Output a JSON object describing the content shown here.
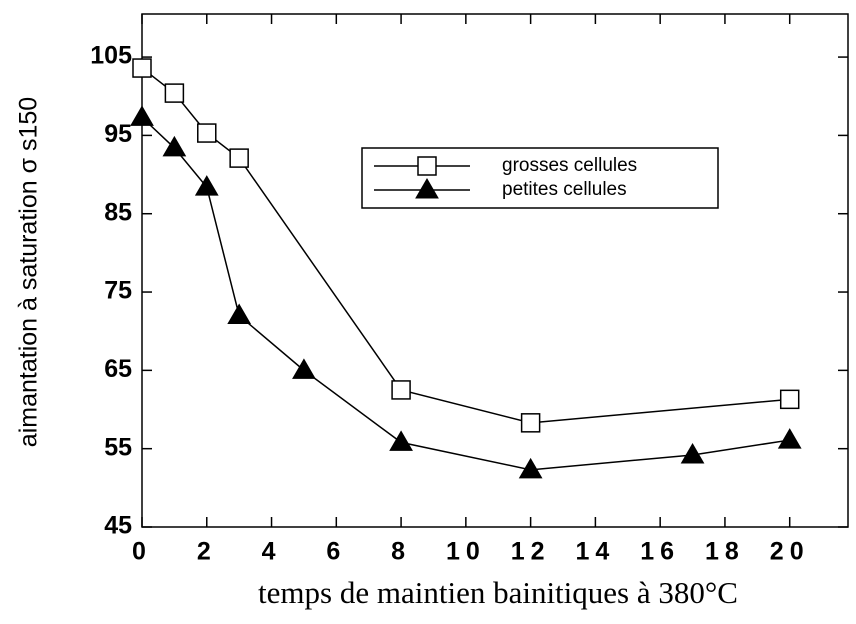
{
  "chart_data": {
    "type": "line",
    "x_label": "temps de maintien bainitiques à 380°C",
    "y_label": "aimantation à saturation σ s150",
    "xlim": [
      0,
      21.8
    ],
    "ylim": [
      45,
      110.5
    ],
    "xticks": [
      0,
      2,
      4,
      6,
      8,
      10,
      12,
      14,
      16,
      18,
      20
    ],
    "yticks": [
      45,
      55,
      65,
      75,
      85,
      95,
      105
    ],
    "series": [
      {
        "name": "grosses cellules",
        "color": "#000000",
        "marker": "square",
        "x": [
          0,
          1,
          2,
          3,
          8,
          12,
          20
        ],
        "values": [
          103.6,
          100.4,
          95.3,
          92.1,
          62.5,
          58.3,
          61.3
        ]
      },
      {
        "name": "petites cellules",
        "color": "#000000",
        "marker": "triangle",
        "x": [
          0,
          1,
          2,
          3,
          5,
          8,
          12,
          17,
          20
        ],
        "values": [
          97.3,
          93.4,
          88.4,
          72,
          65,
          55.8,
          52.3,
          54.2,
          56.1
        ]
      }
    ]
  }
}
